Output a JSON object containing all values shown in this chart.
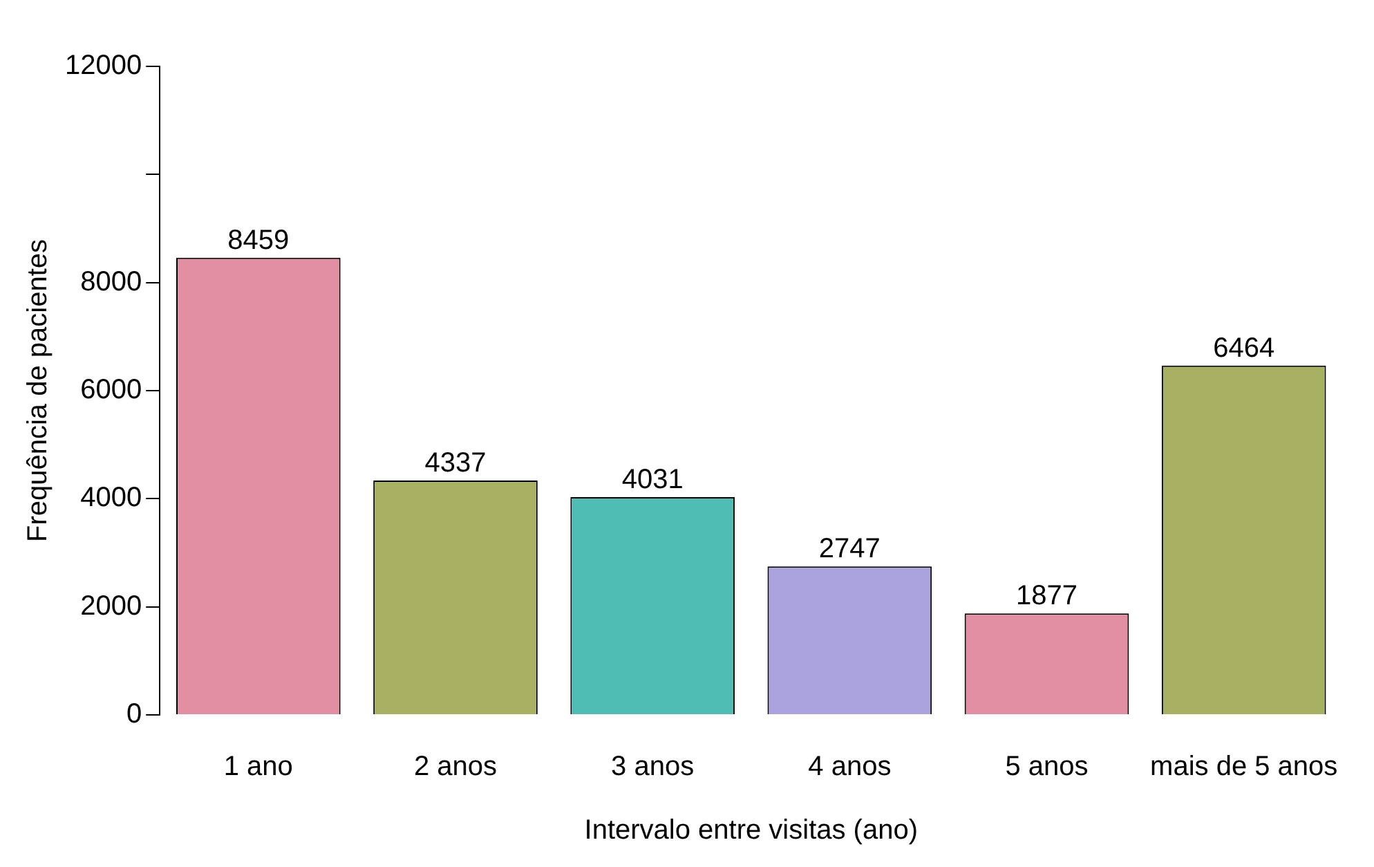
{
  "chart_data": {
    "type": "bar",
    "xlabel": "Intervalo entre visitas (ano)",
    "ylabel": "Frequência de pacientes",
    "categories": [
      "1 ano",
      "2 anos",
      "3 anos",
      "4 anos",
      "5 anos",
      "mais de 5 anos"
    ],
    "values": [
      8459,
      4337,
      4031,
      2747,
      1877,
      6464
    ],
    "colors": [
      "#e38fa3",
      "#a8b062",
      "#4fbdb3",
      "#aaa3de",
      "#e38fa3",
      "#a8b062"
    ],
    "ylim": [
      0,
      12000
    ],
    "yticks": [
      0,
      2000,
      4000,
      6000,
      8000,
      {
        "value": 10000,
        "label": null
      },
      12000
    ],
    "data_labels": true,
    "grid": false,
    "legend": false
  }
}
